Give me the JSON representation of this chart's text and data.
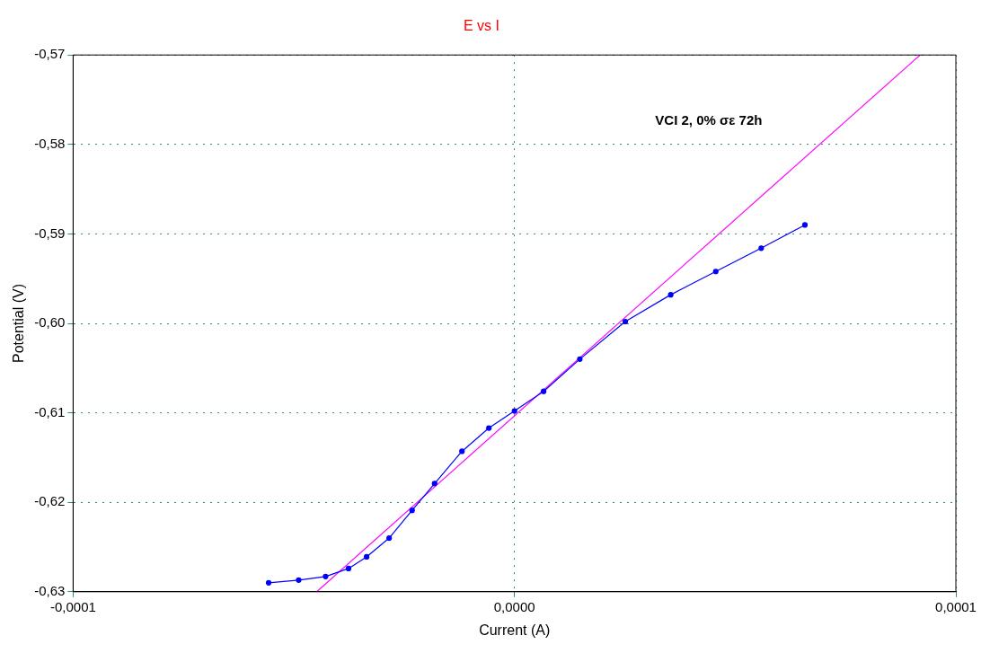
{
  "chart_data": {
    "type": "line",
    "title": "E vs I",
    "xlabel": "Current (A)",
    "ylabel": "Potential (V)",
    "annotations": [
      "VCI 2, 0% σε 72h"
    ],
    "xlim": [
      -0.0001,
      0.0001
    ],
    "xticks": [
      {
        "value": -0.0001,
        "label": "-0,0001"
      },
      {
        "value": 0,
        "label": "0,0000"
      },
      {
        "value": 0.0001,
        "label": "0,0001"
      }
    ],
    "ylim": [
      -0.63,
      -0.57
    ],
    "yticks": [
      {
        "value": -0.63,
        "label": "-0,63"
      },
      {
        "value": -0.62,
        "label": "-0,62"
      },
      {
        "value": -0.61,
        "label": "-0,61"
      },
      {
        "value": -0.6,
        "label": "-0,60"
      },
      {
        "value": -0.59,
        "label": "-0,59"
      },
      {
        "value": -0.58,
        "label": "-0,58"
      },
      {
        "value": -0.57,
        "label": "-0,57"
      }
    ],
    "grid": true,
    "legend": false,
    "marker": "circle",
    "series": [
      {
        "color": "#0000ff",
        "x": [
          -5.57e-05,
          -4.89e-05,
          -4.28e-05,
          -3.76e-05,
          -3.35e-05,
          -2.84e-05,
          -2.32e-05,
          -1.81e-05,
          -1.19e-05,
          -5.8e-06,
          0,
          6.6e-06,
          1.48e-05,
          2.51e-05,
          3.54e-05,
          4.56e-05,
          5.59e-05,
          6.58e-05
        ],
        "values": [
          -0.629,
          -0.6287,
          -0.6283,
          -0.6274,
          -0.6261,
          -0.624,
          -0.6209,
          -0.6179,
          -0.6143,
          -0.6117,
          -0.6098,
          -0.6076,
          -0.604,
          -0.5998,
          -0.5968,
          -0.5942,
          -0.5916,
          -0.589
        ]
      },
      {
        "type": "line",
        "color": "#ff00ff",
        "marker": "none",
        "x": [
          -4.48e-05,
          9.19e-05
        ],
        "values": [
          -0.63,
          -0.57
        ]
      }
    ]
  }
}
